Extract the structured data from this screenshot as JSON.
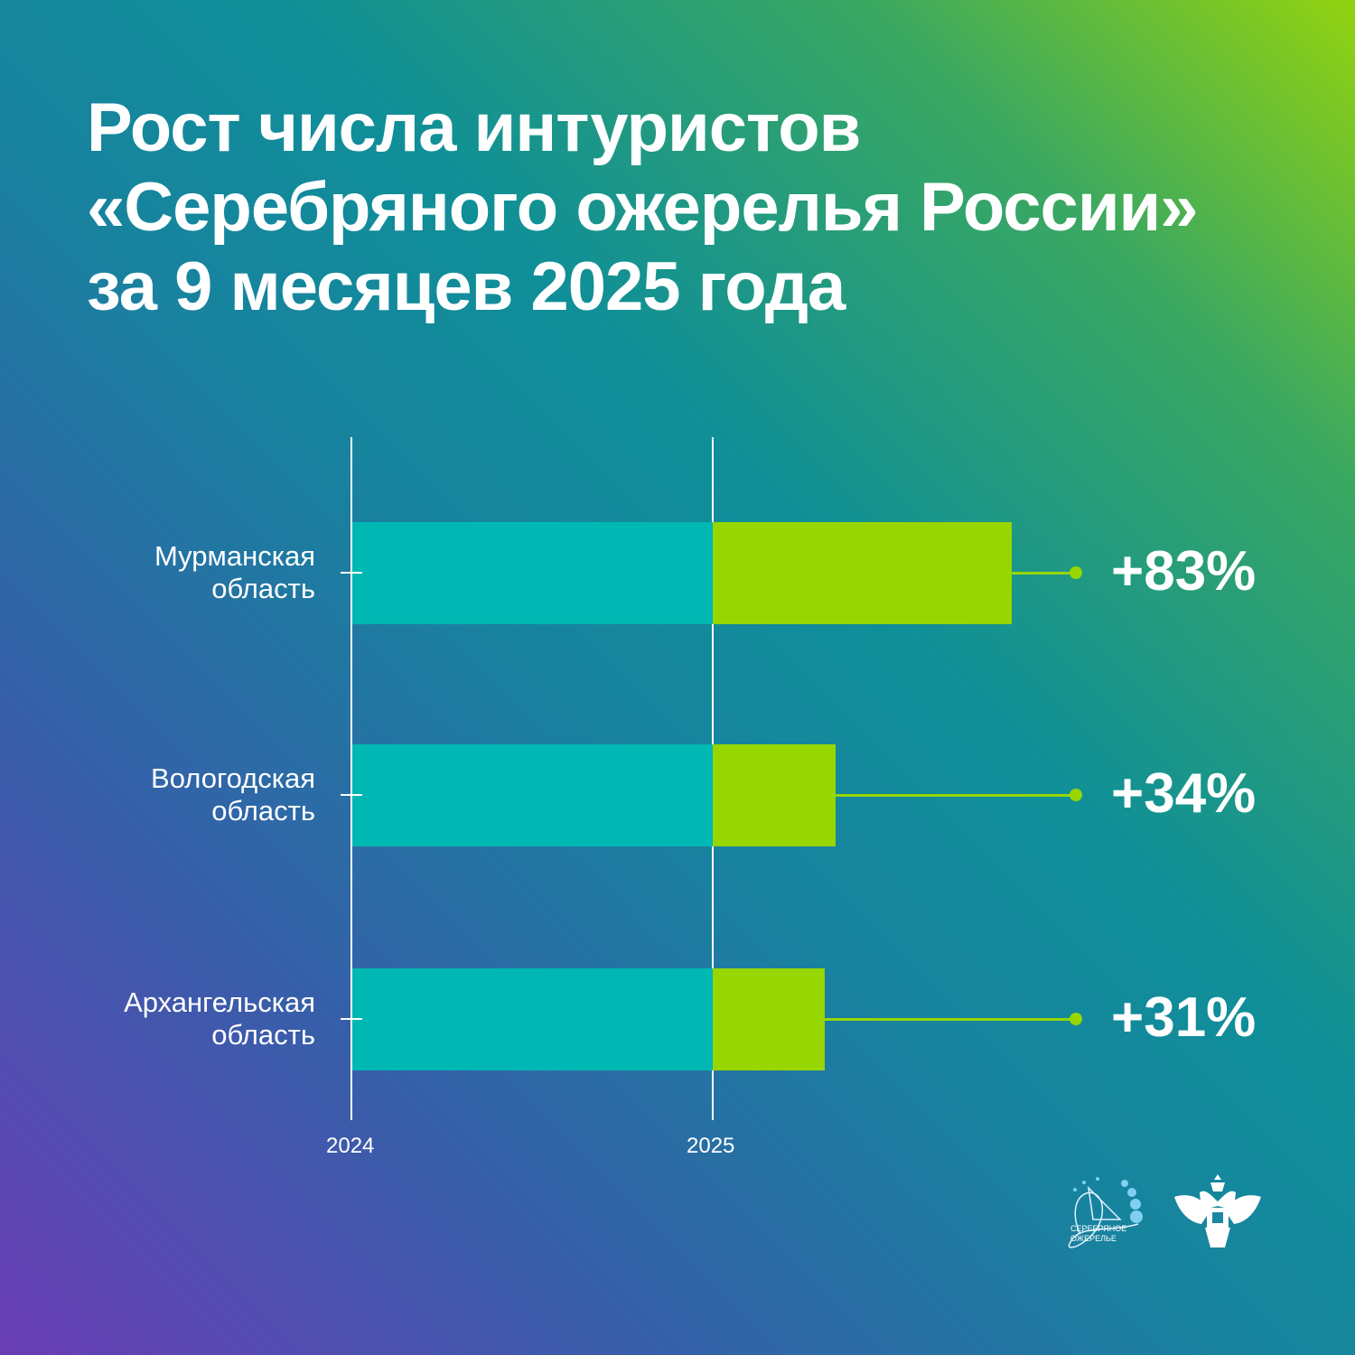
{
  "title": {
    "lines": [
      "Рост числа интуристов",
      "«Серебряного ожерелья России»",
      "за 9 месяцев 2025 года"
    ]
  },
  "chart_data": {
    "type": "bar",
    "title": "Рост числа интуристов «Серебряного ожерелья России» за 9 месяцев 2025 года",
    "x_ticks": [
      "2024",
      "2025"
    ],
    "categories": [
      [
        "Мурманская",
        "область"
      ],
      [
        "Вологодская",
        "область"
      ],
      [
        "Архангельская",
        "область"
      ]
    ],
    "baseline_2024": [
      100,
      100,
      100
    ],
    "growth_percent": [
      83,
      34,
      31
    ],
    "labels": [
      "+83%",
      "+34%",
      "+31%"
    ],
    "colors": {
      "base": "#00b8b3",
      "growth": "#97d600"
    }
  },
  "logos": {
    "silver_necklace": "СЕРЕБРЯНОЕ ОЖЕРЕЛЬЕ"
  }
}
